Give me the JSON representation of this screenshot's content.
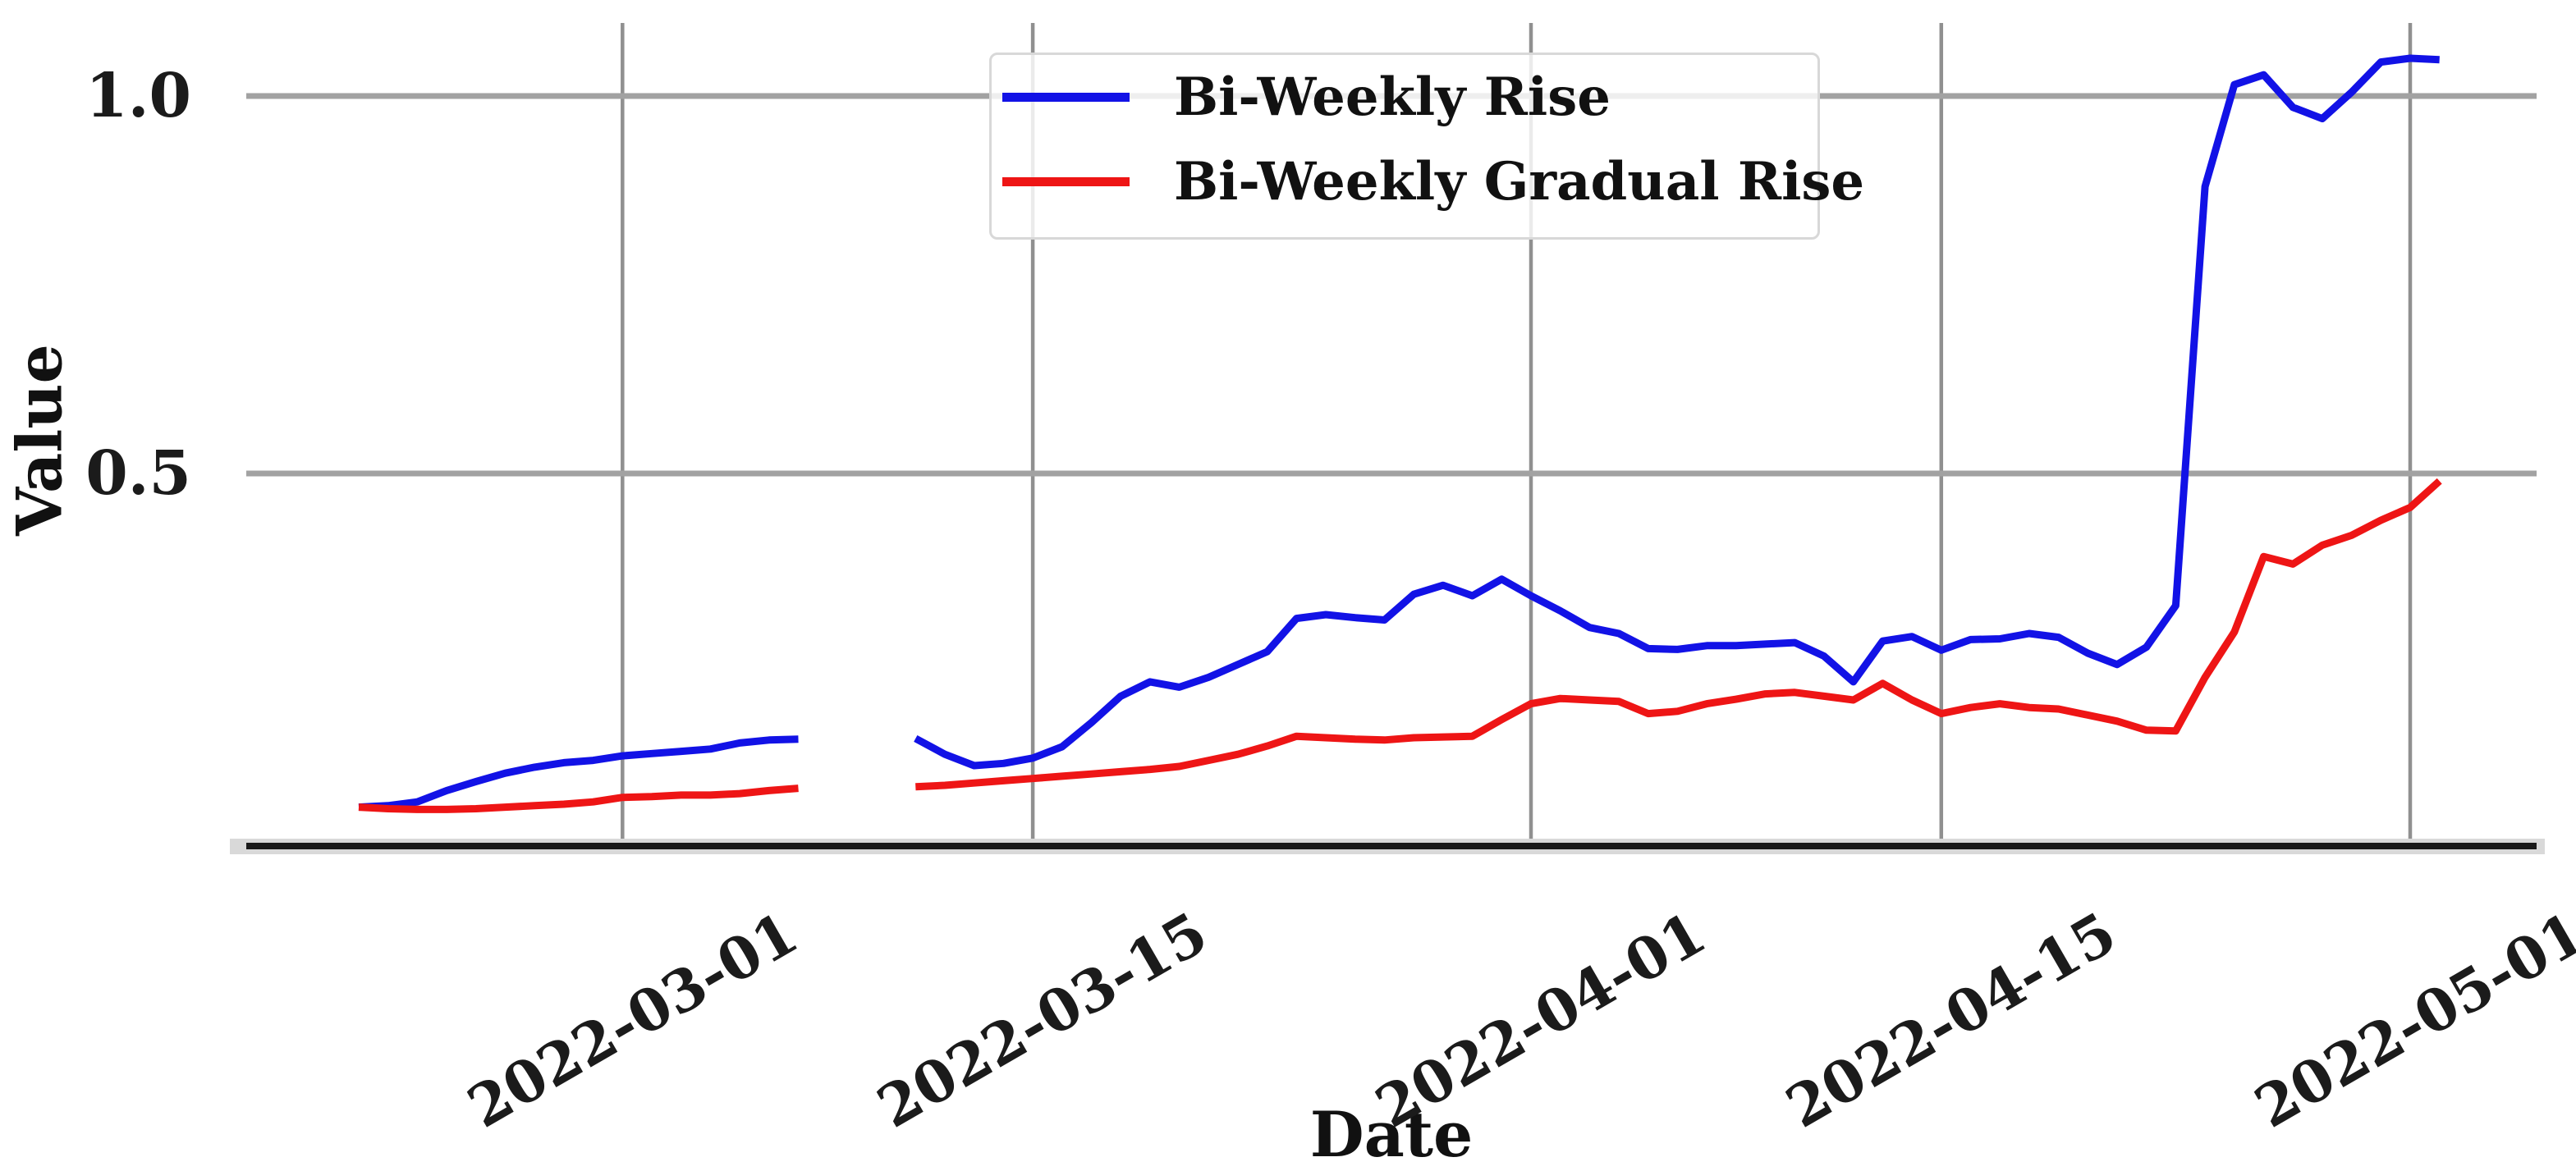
{
  "figure": {
    "ylabel": "Value",
    "xlabel": "Date",
    "yticks": [
      {
        "label": "1.0",
        "value": 1.0
      },
      {
        "label": "0.5",
        "value": 0.5
      }
    ],
    "xticks": [
      "2022-03-01",
      "2022-03-15",
      "2022-04-01",
      "2022-04-15",
      "2022-05-01"
    ],
    "colors": {
      "background": "#ffffff",
      "grid_horizontal": "#a2a2a2",
      "grid_vertical": "#909090",
      "axis_spine": "#1a1a1a",
      "axis_spine_band": "#d9d9d9",
      "legend_border": "#d8d8d8",
      "text": "#1b1b1b"
    }
  },
  "chart_data": {
    "type": "line",
    "title": "",
    "xlabel": "Date",
    "ylabel": "Value",
    "ylim": [
      0,
      1.1
    ],
    "grid": true,
    "legend_position": "upper center",
    "x": [
      "2022-02-20",
      "2022-02-21",
      "2022-02-22",
      "2022-02-23",
      "2022-02-24",
      "2022-02-25",
      "2022-02-26",
      "2022-02-27",
      "2022-02-28",
      "2022-03-01",
      "2022-03-02",
      "2022-03-03",
      "2022-03-04",
      "2022-03-05",
      "2022-03-06",
      "2022-03-07",
      "2022-03-08",
      "2022-03-09",
      "2022-03-10",
      "2022-03-11",
      "2022-03-12",
      "2022-03-13",
      "2022-03-14",
      "2022-03-15",
      "2022-03-16",
      "2022-03-17",
      "2022-03-18",
      "2022-03-19",
      "2022-03-20",
      "2022-03-21",
      "2022-03-22",
      "2022-03-23",
      "2022-03-24",
      "2022-03-25",
      "2022-03-26",
      "2022-03-27",
      "2022-03-28",
      "2022-03-29",
      "2022-03-30",
      "2022-03-31",
      "2022-04-01",
      "2022-04-02",
      "2022-04-03",
      "2022-04-04",
      "2022-04-05",
      "2022-04-06",
      "2022-04-07",
      "2022-04-08",
      "2022-04-09",
      "2022-04-10",
      "2022-04-11",
      "2022-04-12",
      "2022-04-13",
      "2022-04-14",
      "2022-04-15",
      "2022-04-16",
      "2022-04-17",
      "2022-04-18",
      "2022-04-19",
      "2022-04-20",
      "2022-04-21",
      "2022-04-22",
      "2022-04-23",
      "2022-04-24",
      "2022-04-25",
      "2022-04-26",
      "2022-04-27",
      "2022-04-28",
      "2022-04-29",
      "2022-04-30",
      "2022-05-01",
      "2022-05-02"
    ],
    "series": [
      {
        "name": "Bi-Weekly Rise",
        "color": "#1212e6",
        "values": [
          0.058,
          0.06,
          0.065,
          0.08,
          0.092,
          0.103,
          0.111,
          0.117,
          0.12,
          0.126,
          0.129,
          0.132,
          0.135,
          0.143,
          0.147,
          0.148,
          null,
          null,
          null,
          0.149,
          0.128,
          0.113,
          0.116,
          0.123,
          0.138,
          0.17,
          0.205,
          0.224,
          0.217,
          0.23,
          0.247,
          0.264,
          0.308,
          0.313,
          0.309,
          0.306,
          0.34,
          0.352,
          0.338,
          0.36,
          0.338,
          0.318,
          0.296,
          0.288,
          0.268,
          0.267,
          0.272,
          0.272,
          0.274,
          0.276,
          0.258,
          0.224,
          0.278,
          0.284,
          0.266,
          0.28,
          0.281,
          0.288,
          0.283,
          0.262,
          0.247,
          0.27,
          0.325,
          0.88,
          1.015,
          1.028,
          0.985,
          0.97,
          1.005,
          1.045,
          1.05,
          1.048
        ]
      },
      {
        "name": "Bi-Weekly Gradual Rise",
        "color": "#ee1515",
        "values": [
          0.058,
          0.056,
          0.055,
          0.055,
          0.056,
          0.058,
          0.06,
          0.062,
          0.065,
          0.071,
          0.072,
          0.074,
          0.074,
          0.076,
          0.08,
          0.083,
          null,
          null,
          null,
          0.085,
          0.087,
          0.09,
          0.093,
          0.096,
          0.099,
          0.102,
          0.105,
          0.108,
          0.112,
          0.12,
          0.128,
          0.139,
          0.152,
          0.15,
          0.148,
          0.147,
          0.15,
          0.151,
          0.152,
          0.174,
          0.195,
          0.202,
          0.2,
          0.198,
          0.182,
          0.185,
          0.195,
          0.201,
          0.208,
          0.21,
          0.205,
          0.2,
          0.222,
          0.2,
          0.182,
          0.19,
          0.195,
          0.19,
          0.188,
          0.18,
          0.172,
          0.16,
          0.159,
          0.23,
          0.29,
          0.39,
          0.38,
          0.405,
          0.418,
          0.438,
          0.455,
          0.49
        ]
      }
    ]
  }
}
